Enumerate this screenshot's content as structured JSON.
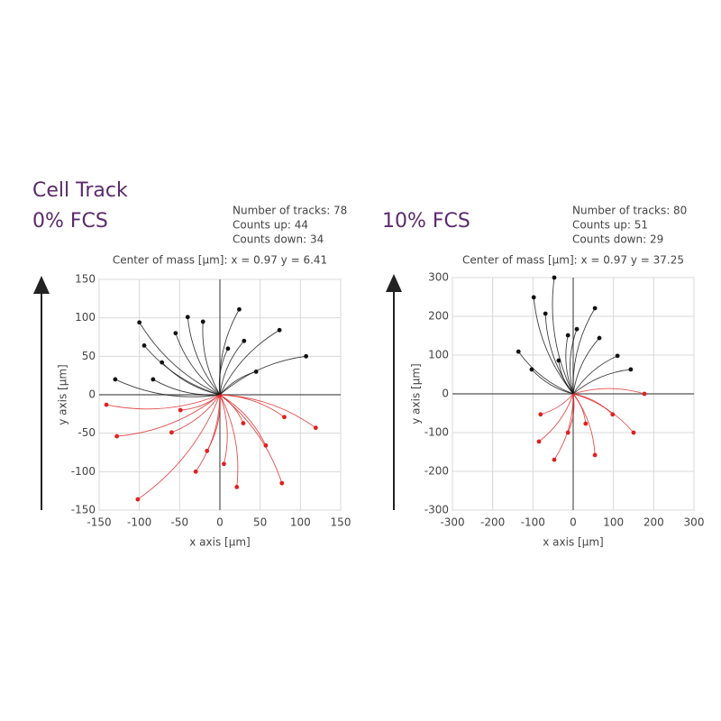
{
  "title": "Cell Track",
  "chart_data": [
    {
      "type": "scatter",
      "title": "0% FCS",
      "stats": [
        "Number of tracks: 78",
        "Counts up: 44",
        "Counts down: 34"
      ],
      "subtitle": "Center of mass [µm]: x = 0.97 y = 6.41",
      "x_label": "x axis [µm]",
      "y_label": "y axis [µm]",
      "xlim": [
        -150,
        150
      ],
      "ylim": [
        -150,
        150
      ],
      "xticks": [
        -150,
        -100,
        -50,
        0,
        50,
        100,
        150
      ],
      "yticks": [
        -150,
        -100,
        -50,
        0,
        50,
        100,
        150
      ],
      "grid": true,
      "series": [
        {
          "color": "#111111",
          "x": [
            -100,
            -40,
            24,
            74,
            107,
            -94,
            -130,
            -83,
            -21,
            -72,
            10,
            45,
            -55,
            30
          ],
          "values": [
            94,
            101,
            111,
            84,
            50,
            64,
            20,
            20,
            95,
            42,
            60,
            30,
            80,
            70
          ]
        },
        {
          "color": "#e02020",
          "x": [
            -102,
            -141,
            -128,
            119,
            77,
            21,
            57,
            80,
            -60,
            -16,
            -49,
            29,
            5,
            -30
          ],
          "values": [
            -136,
            -13,
            -54,
            -43,
            -115,
            -120,
            -66,
            -29,
            -49,
            -73,
            -20,
            -37,
            -90,
            -100
          ]
        }
      ]
    },
    {
      "type": "scatter",
      "title": "10% FCS",
      "stats": [
        "Number of tracks: 80",
        "Counts up: 51",
        "Counts down: 29"
      ],
      "subtitle": "Center of mass [µm]: x = 0.97 y = 37.25",
      "x_label": "x axis [µm]",
      "y_label": "y axis [µm]",
      "xlim": [
        -300,
        300
      ],
      "ylim": [
        -300,
        300
      ],
      "xticks": [
        -300,
        -200,
        -100,
        0,
        100,
        200,
        300
      ],
      "yticks": [
        -300,
        -200,
        -100,
        0,
        100,
        200,
        300
      ],
      "grid": true,
      "series": [
        {
          "color": "#111111",
          "x": [
            -47,
            -98,
            54,
            -69,
            9,
            143,
            110,
            -136,
            -13,
            65,
            -103,
            -36
          ],
          "values": [
            300,
            249,
            221,
            207,
            167,
            63,
            98,
            109,
            151,
            144,
            63,
            86
          ]
        },
        {
          "color": "#e02020",
          "x": [
            -85,
            -47,
            54,
            150,
            177,
            31,
            -81,
            98,
            -13
          ],
          "values": [
            -123,
            -170,
            -158,
            -100,
            0,
            -77,
            -53,
            -53,
            -100
          ]
        }
      ]
    }
  ]
}
